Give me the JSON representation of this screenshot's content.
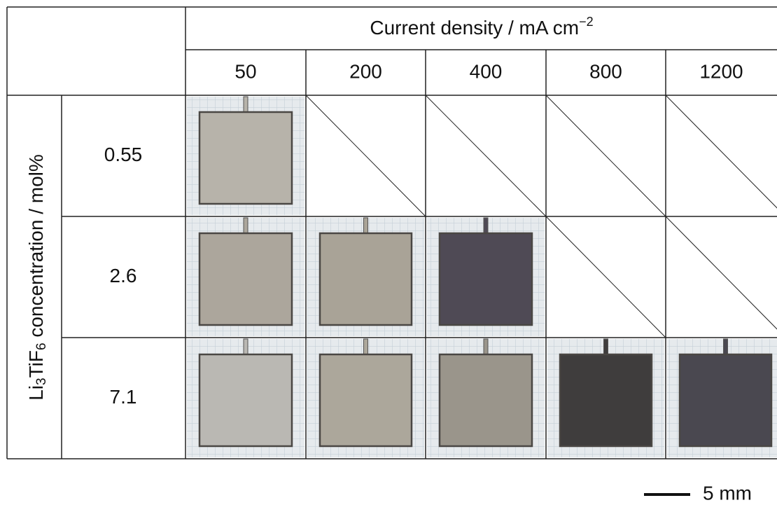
{
  "column_header": {
    "title": "Current density / mA cm",
    "superscript": "−2",
    "columns": [
      "50",
      "200",
      "400",
      "800",
      "1200"
    ]
  },
  "row_header": {
    "parts": [
      {
        "text": "Li"
      },
      {
        "text": "3",
        "sub": true
      },
      {
        "text": "TiF"
      },
      {
        "text": "6",
        "sub": true
      },
      {
        "text": " concentration  / mol%"
      }
    ]
  },
  "rows": [
    {
      "label": "0.55",
      "cells": [
        {
          "color": "#b7b3aa"
        },
        null,
        null,
        null,
        null
      ]
    },
    {
      "label": "2.6",
      "cells": [
        {
          "color": "#aca69c"
        },
        {
          "color": "#a9a397"
        },
        {
          "color": "#4f4a55"
        },
        null,
        null
      ]
    },
    {
      "label": "7.1",
      "cells": [
        {
          "color": "#bab8b3"
        },
        {
          "color": "#aca79b"
        },
        {
          "color": "#9a958b"
        },
        {
          "color": "#3f3d3d"
        },
        {
          "color": "#4a4850"
        }
      ]
    }
  ],
  "scale_bar": "5 mm"
}
